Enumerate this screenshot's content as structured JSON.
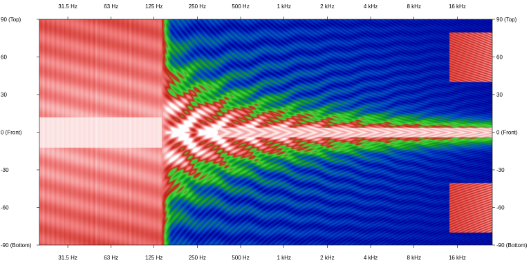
{
  "chart_data": {
    "type": "heatmap",
    "title": "",
    "xlabel": "",
    "ylabel": "",
    "x_scale": "log",
    "x_range_hz": [
      20,
      28000
    ],
    "y_range_deg": [
      -90,
      90
    ],
    "x_ticks": [
      {
        "hz": 31.5,
        "label": "31.5 Hz"
      },
      {
        "hz": 63,
        "label": "63 Hz"
      },
      {
        "hz": 125,
        "label": "125 Hz"
      },
      {
        "hz": 250,
        "label": "250 Hz"
      },
      {
        "hz": 500,
        "label": "500 Hz"
      },
      {
        "hz": 1000,
        "label": "1 kHz"
      },
      {
        "hz": 2000,
        "label": "2 kHz"
      },
      {
        "hz": 4000,
        "label": "4 kHz"
      },
      {
        "hz": 8000,
        "label": "8 kHz"
      },
      {
        "hz": 16000,
        "label": "16 kHz"
      }
    ],
    "y_ticks": [
      {
        "deg": 90,
        "label": "90 (Top)"
      },
      {
        "deg": 60,
        "label": "60"
      },
      {
        "deg": 30,
        "label": "30"
      },
      {
        "deg": 0,
        "label": "0 (Front)"
      },
      {
        "deg": -30,
        "label": "-30"
      },
      {
        "deg": -60,
        "label": "-60"
      },
      {
        "deg": -90,
        "label": "-90 (Bottom)"
      }
    ],
    "tick_labels_on_all_sides": true,
    "grid": false,
    "legend": "none",
    "colormap": [
      "#00003a",
      "#0000a0",
      "#0050c8",
      "#18a018",
      "#40e040",
      "#c81e14",
      "#f28080",
      "#ffffff"
    ],
    "features": {
      "low_frequency_region_hz": [
        20,
        150
      ],
      "main_lobe_center_deg": 0,
      "edge_artifact_hz": 28000
    }
  }
}
